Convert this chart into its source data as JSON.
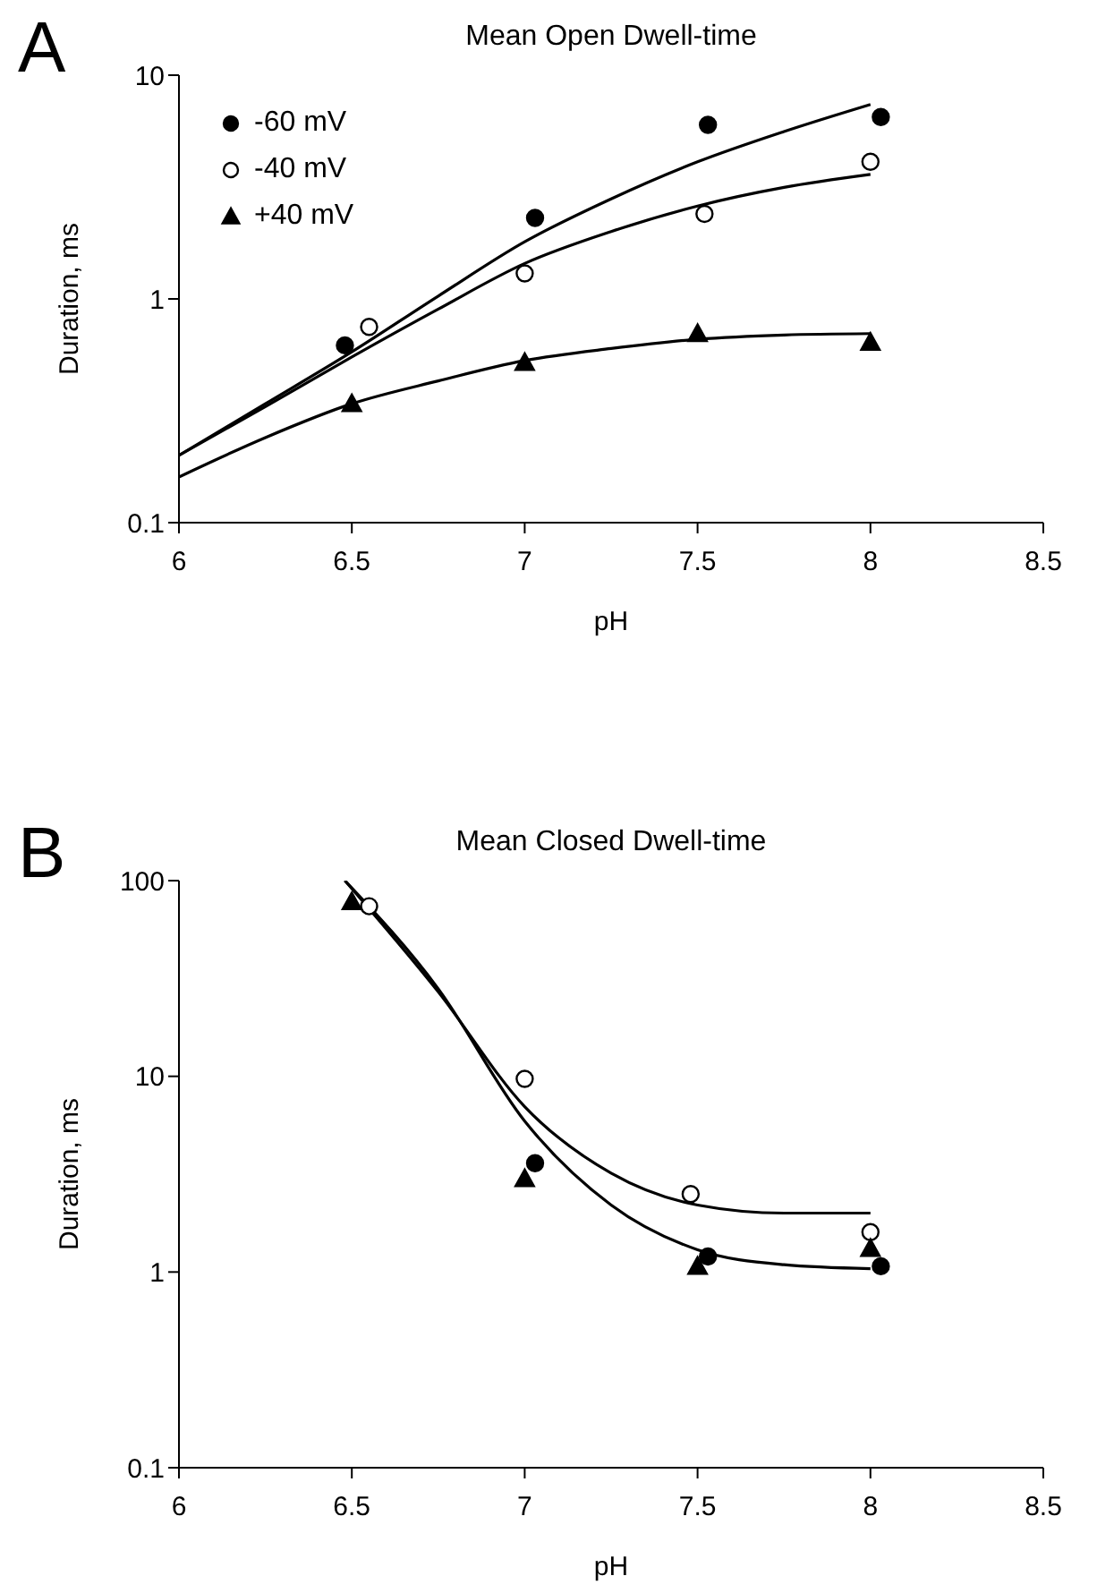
{
  "chart_data": [
    {
      "type": "scatter",
      "title": "Mean Open Dwell-time",
      "xlabel": "pH",
      "ylabel": "Duration, ms",
      "annotations": [
        "A"
      ],
      "log": "y",
      "legend": "top left",
      "xlim": [
        6,
        8.5
      ],
      "xticks": [
        6,
        6.5,
        7,
        7.5,
        8,
        8.5
      ],
      "ylim": [
        0.1,
        10
      ],
      "yticks": [
        0.1,
        1,
        10
      ],
      "series": [
        {
          "name": "-60 mV",
          "color": "#000000",
          "marker": "circle",
          "x": [
            6.48,
            7.03,
            7.53,
            8.03
          ],
          "values": [
            0.62,
            2.3,
            6.0,
            6.5
          ]
        },
        {
          "name": "-40 mV",
          "color": "#ffffff",
          "marker": "circle",
          "x": [
            6.55,
            7.0,
            7.52,
            8.0
          ],
          "values": [
            0.75,
            1.3,
            2.4,
            4.1
          ]
        },
        {
          "name": "+40 mV",
          "color": "#000000",
          "marker": "triangle",
          "x": [
            6.5,
            7.0,
            7.5,
            8.0
          ],
          "values": [
            0.34,
            0.52,
            0.7,
            0.64
          ]
        },
        {
          "type": "line",
          "color": "#000000",
          "marker": "none",
          "x": [
            6,
            6.25,
            6.5,
            6.75,
            7,
            7.25,
            7.5,
            7.75,
            8
          ],
          "values": [
            0.2,
            0.34,
            0.58,
            1.03,
            1.8,
            2.8,
            4.1,
            5.6,
            7.4
          ]
        },
        {
          "type": "line",
          "color": "#000000",
          "marker": "none",
          "x": [
            6,
            6.25,
            6.5,
            6.75,
            7,
            7.25,
            7.5,
            7.75,
            8
          ],
          "values": [
            0.2,
            0.33,
            0.55,
            0.9,
            1.44,
            2.0,
            2.6,
            3.15,
            3.6
          ]
        },
        {
          "type": "line",
          "color": "#000000",
          "marker": "none",
          "x": [
            6,
            6.25,
            6.5,
            6.75,
            7,
            7.25,
            7.5,
            7.75,
            8
          ],
          "values": [
            0.16,
            0.24,
            0.34,
            0.43,
            0.53,
            0.6,
            0.66,
            0.69,
            0.7
          ]
        }
      ]
    },
    {
      "type": "scatter",
      "title": "Mean Closed Dwell-time",
      "xlabel": "pH",
      "ylabel": "Duration, ms",
      "annotations": [
        "B"
      ],
      "log": "y",
      "xlim": [
        6,
        8.5
      ],
      "xticks": [
        6,
        6.5,
        7,
        7.5,
        8,
        8.5
      ],
      "ylim": [
        0.1,
        100
      ],
      "yticks": [
        0.1,
        1,
        10,
        100
      ],
      "series": [
        {
          "color": "#000000",
          "marker": "circle",
          "x": [
            7.03,
            7.53,
            8.03
          ],
          "values": [
            3.6,
            1.2,
            1.07
          ]
        },
        {
          "color": "#ffffff",
          "marker": "circle",
          "x": [
            6.55,
            7.0,
            7.48,
            8.0
          ],
          "values": [
            74,
            9.7,
            2.5,
            1.6
          ]
        },
        {
          "color": "#000000",
          "marker": "triangle",
          "x": [
            6.5,
            7.0,
            7.5,
            8.0
          ],
          "values": [
            78,
            3.0,
            1.07,
            1.32
          ]
        },
        {
          "type": "line",
          "color": "#000000",
          "marker": "none",
          "x": [
            6.48,
            6.75,
            7,
            7.25,
            7.5,
            7.75,
            8
          ],
          "values": [
            100,
            27,
            7.0,
            3.2,
            2.2,
            2.0,
            2.0
          ]
        },
        {
          "type": "line",
          "color": "#000000",
          "marker": "none",
          "x": [
            6.48,
            6.75,
            7,
            7.25,
            7.5,
            7.75,
            8
          ],
          "values": [
            100,
            28,
            5.9,
            2.2,
            1.3,
            1.09,
            1.04
          ]
        }
      ]
    }
  ]
}
